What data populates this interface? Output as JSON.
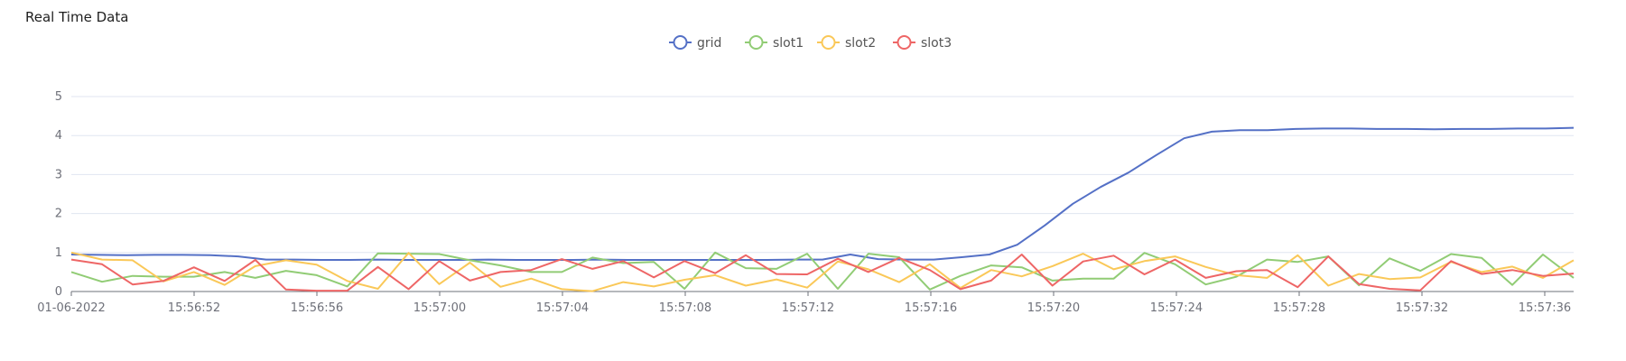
{
  "title": "Real Time Data",
  "chart_data": {
    "type": "line",
    "ylim": [
      0,
      5
    ],
    "yticks": [
      "0",
      "1",
      "2",
      "3",
      "4",
      "5"
    ],
    "x_tick_labels": [
      "01-06-2022",
      "15:56:52",
      "15:56:56",
      "15:57:00",
      "15:57:04",
      "15:57:08",
      "15:57:12",
      "15:57:16",
      "15:57:20",
      "15:57:24",
      "15:57:28",
      "15:57:32",
      "15:57:36"
    ],
    "legend_position": "top-center",
    "grid": true,
    "series": [
      {
        "name": "grid",
        "color": "#5470c6",
        "values": [
          0.95,
          0.94,
          0.93,
          0.94,
          0.94,
          0.93,
          0.9,
          0.82,
          0.82,
          0.81,
          0.81,
          0.82,
          0.81,
          0.81,
          0.81,
          0.82,
          0.81,
          0.81,
          0.81,
          0.82,
          0.81,
          0.81,
          0.81,
          0.81,
          0.81,
          0.81,
          0.82,
          0.82,
          0.95,
          0.83,
          0.82,
          0.82,
          0.88,
          0.95,
          1.2,
          1.7,
          2.25,
          2.68,
          3.05,
          3.5,
          3.93,
          4.1,
          4.14,
          4.14,
          4.17,
          4.18,
          4.18,
          4.17,
          4.17,
          4.16,
          4.17,
          4.17,
          4.18,
          4.18,
          4.2
        ]
      },
      {
        "name": "slot1",
        "color": "#91cc75",
        "values": [
          0.5,
          0.25,
          0.4,
          0.38,
          0.38,
          0.5,
          0.35,
          0.53,
          0.42,
          0.13,
          0.98,
          0.97,
          0.96,
          0.8,
          0.67,
          0.5,
          0.5,
          0.87,
          0.73,
          0.76,
          0.07,
          1.0,
          0.6,
          0.58,
          0.97,
          0.07,
          0.97,
          0.88,
          0.05,
          0.4,
          0.67,
          0.62,
          0.28,
          0.33,
          0.33,
          0.99,
          0.7,
          0.18,
          0.38,
          0.82,
          0.76,
          0.9,
          0.16,
          0.85,
          0.53,
          0.96,
          0.86,
          0.17,
          0.95,
          0.35
        ]
      },
      {
        "name": "slot2",
        "color": "#fac858",
        "values": [
          1.0,
          0.82,
          0.8,
          0.26,
          0.5,
          0.17,
          0.65,
          0.8,
          0.69,
          0.27,
          0.07,
          0.99,
          0.19,
          0.74,
          0.12,
          0.33,
          0.06,
          0.01,
          0.24,
          0.13,
          0.3,
          0.42,
          0.15,
          0.31,
          0.1,
          0.77,
          0.57,
          0.24,
          0.7,
          0.09,
          0.55,
          0.39,
          0.65,
          0.97,
          0.57,
          0.78,
          0.9,
          0.63,
          0.42,
          0.35,
          0.93,
          0.15,
          0.45,
          0.32,
          0.36,
          0.76,
          0.5,
          0.64,
          0.35,
          0.8
        ]
      },
      {
        "name": "slot3",
        "color": "#ee6666",
        "values": [
          0.82,
          0.7,
          0.18,
          0.27,
          0.62,
          0.27,
          0.81,
          0.05,
          0.02,
          0.02,
          0.63,
          0.06,
          0.78,
          0.28,
          0.5,
          0.55,
          0.83,
          0.58,
          0.78,
          0.36,
          0.78,
          0.47,
          0.93,
          0.45,
          0.44,
          0.84,
          0.5,
          0.86,
          0.55,
          0.06,
          0.28,
          0.95,
          0.15,
          0.77,
          0.92,
          0.44,
          0.82,
          0.35,
          0.52,
          0.55,
          0.11,
          0.9,
          0.19,
          0.07,
          0.03,
          0.78,
          0.45,
          0.55,
          0.4,
          0.46
        ]
      }
    ]
  }
}
